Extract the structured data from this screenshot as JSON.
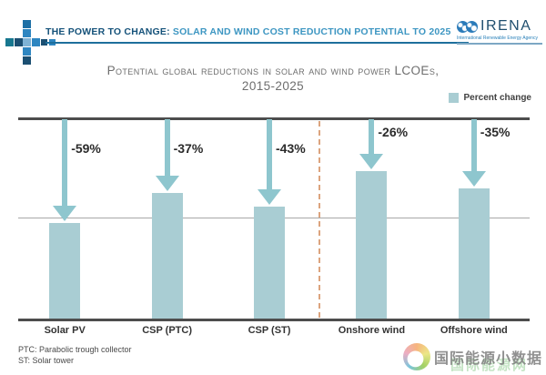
{
  "header": {
    "report_title_bold": "THE POWER TO CHANGE:",
    "report_title_rest": " SOLAR AND WIND COST REDUCTION POTENTIAL TO 2025",
    "irena_name": "IRENA",
    "irena_subtitle": "International Renewable Energy Agency"
  },
  "legend": {
    "label": "Percent change",
    "swatch_color": "#a9cdd3"
  },
  "chart_data": {
    "type": "bar",
    "title_line1": "Potential global reductions in solar and wind power LCOEs,",
    "title_line2": "2015-2025",
    "categories": [
      "Solar PV",
      "CSP (PTC)",
      "CSP (ST)",
      "Onshore wind",
      "Offshore wind"
    ],
    "series": [
      {
        "name": "Percent change 2015-2025",
        "values": [
          -59,
          -37,
          -43,
          -26,
          -35
        ]
      }
    ],
    "value_labels": [
      "-59%",
      "-37%",
      "-43%",
      "-26%",
      "-35%"
    ],
    "bar_level_pct": [
      48,
      63,
      56.5,
      74,
      65.5
    ],
    "divider_after_index": 2,
    "legend_position": "top-right",
    "grid": "single horizontal gridline at mid-height; heavy top baseline and bottom axis",
    "bar_color": "#a9cdd3",
    "arrow_color": "#8ec6ce",
    "divider_color": "#dca47e",
    "xlabel": "",
    "ylabel": ""
  },
  "footnotes": [
    "PTC: Parabolic trough collector",
    "ST: Solar tower"
  ],
  "watermark": {
    "text": "国际能源小数据",
    "ghost_text": "国际能源网"
  }
}
